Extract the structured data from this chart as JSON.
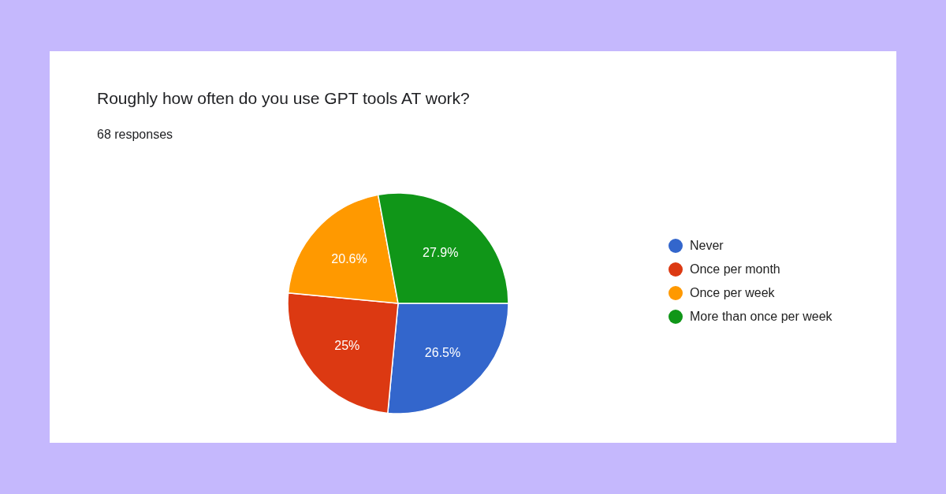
{
  "chart_data": {
    "type": "pie",
    "title": "Roughly how often do you use GPT tools AT work?",
    "subtitle": "68 responses",
    "categories": [
      "Never",
      "Once per month",
      "Once per week",
      "More than once per week"
    ],
    "values": [
      26.5,
      25,
      20.6,
      27.9
    ],
    "colors": [
      "#3366cc",
      "#dc3912",
      "#ff9900",
      "#109618"
    ],
    "value_labels": [
      "26.5%",
      "25%",
      "20.6%",
      "27.9%"
    ],
    "legend": "right"
  }
}
